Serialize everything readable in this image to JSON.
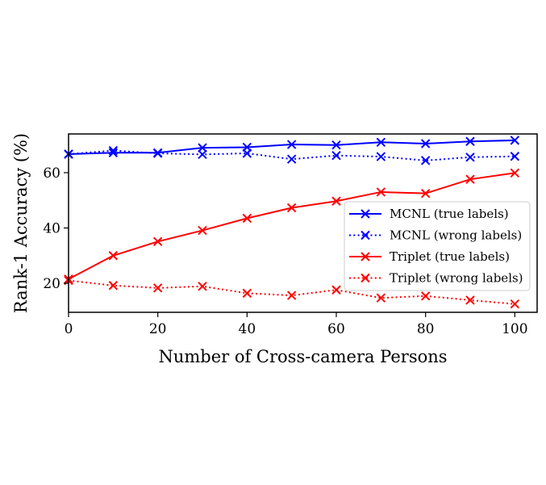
{
  "chart_data": {
    "type": "line",
    "title": "",
    "xlabel": "Number of Cross-camera Persons",
    "ylabel": "Rank-1 Accuracy (%)",
    "xlim": [
      0,
      105
    ],
    "ylim": [
      9.5,
      74
    ],
    "xticks": [
      0,
      20,
      40,
      60,
      80,
      100
    ],
    "yticks": [
      20,
      40,
      60
    ],
    "x": [
      0,
      10,
      20,
      30,
      40,
      50,
      60,
      70,
      80,
      90,
      100
    ],
    "grid": false,
    "legend_position": "center-right",
    "series": [
      {
        "name": "MCNL (true labels)",
        "color": "#0000ff",
        "linestyle": "solid",
        "marker": "x",
        "values": [
          66.7,
          67.2,
          67.2,
          69.0,
          69.2,
          70.2,
          70.0,
          71.0,
          70.5,
          71.3,
          71.7
        ]
      },
      {
        "name": "MCNL (wrong labels)",
        "color": "#0000ff",
        "linestyle": "dotted",
        "marker": "x",
        "values": [
          66.7,
          68.0,
          67.0,
          66.6,
          67.0,
          64.9,
          66.2,
          65.8,
          64.4,
          65.6,
          65.9
        ]
      },
      {
        "name": "Triplet (true labels)",
        "color": "#ff0000",
        "linestyle": "solid",
        "marker": "x",
        "values": [
          21.5,
          30.0,
          35.1,
          39.1,
          43.5,
          47.3,
          49.7,
          53.0,
          52.5,
          57.6,
          59.9
        ]
      },
      {
        "name": "Triplet (wrong labels)",
        "color": "#ff0000",
        "linestyle": "dotted",
        "marker": "x",
        "values": [
          21.0,
          19.2,
          18.3,
          18.9,
          16.4,
          15.6,
          17.6,
          14.7,
          15.4,
          13.9,
          12.5
        ]
      }
    ]
  }
}
